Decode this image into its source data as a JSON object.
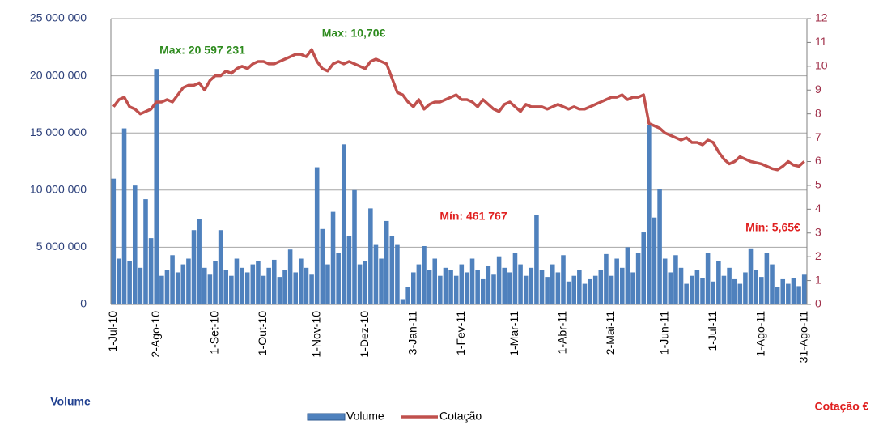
{
  "chart_data": {
    "type": "bar-line",
    "annotations": [
      "Max: 20 597 231",
      "Max: 10,70€",
      "Mín: 461 767",
      "Mín: 5,65€"
    ],
    "y_label": "Volume",
    "y2_label": "Cotação €",
    "categories": [
      "1-Jul-10",
      null,
      null,
      null,
      null,
      null,
      null,
      null,
      "2-Ago-10",
      null,
      null,
      null,
      null,
      null,
      null,
      null,
      null,
      null,
      null,
      "1-Set-10",
      null,
      null,
      null,
      null,
      null,
      null,
      null,
      null,
      "1-Out-10",
      null,
      null,
      null,
      null,
      null,
      null,
      null,
      null,
      null,
      "1-Nov-10",
      null,
      null,
      null,
      null,
      null,
      null,
      null,
      null,
      "1-Dez-10",
      null,
      null,
      null,
      null,
      null,
      null,
      null,
      null,
      "3-Jan-11",
      null,
      null,
      null,
      null,
      null,
      null,
      null,
      null,
      "1-Fev-11",
      null,
      null,
      null,
      null,
      null,
      null,
      null,
      null,
      null,
      "1-Mar-11",
      null,
      null,
      null,
      null,
      null,
      null,
      null,
      null,
      "1-Abr-11",
      null,
      null,
      null,
      null,
      null,
      null,
      null,
      null,
      "2-Mai-11",
      null,
      null,
      null,
      null,
      null,
      null,
      null,
      null,
      null,
      "1-Jun-11",
      null,
      null,
      null,
      null,
      null,
      null,
      null,
      null,
      "1-Jul-11",
      null,
      null,
      null,
      null,
      null,
      null,
      null,
      null,
      "1-Ago-11",
      null,
      null,
      null,
      null,
      null,
      null,
      null,
      "31-Ago-11"
    ],
    "series": [
      {
        "name": "Volume",
        "type": "bar",
        "color": "#4f81bd",
        "values": [
          11000000.0,
          4000000.0,
          15400000.0,
          3800000.0,
          10400000.0,
          3200000.0,
          9200000.0,
          5800000.0,
          20597231,
          2500000.0,
          3000000.0,
          4300000.0,
          2800000.0,
          3500000.0,
          4000000.0,
          6500000.0,
          7500000.0,
          3200000.0,
          2600000.0,
          3800000.0,
          6500000.0,
          3000000.0,
          2500000.0,
          4000000.0,
          3200000.0,
          2800000.0,
          3500000.0,
          3800000.0,
          2500000.0,
          3200000.0,
          3900000.0,
          2400000.0,
          3000000.0,
          4800000.0,
          2800000.0,
          4000000.0,
          3200000.0,
          2600000.0,
          12000000.0,
          6600000.0,
          3500000.0,
          8100000.0,
          4500000.0,
          14000000.0,
          6000000.0,
          10000000.0,
          3500000.0,
          3800000.0,
          8400000.0,
          5200000.0,
          4000000.0,
          7300000.0,
          6000000.0,
          5200000.0,
          461767,
          1500000.0,
          2800000.0,
          3500000.0,
          5100000.0,
          3000000.0,
          4000000.0,
          2500000.0,
          3200000.0,
          3000000.0,
          2500000.0,
          3500000.0,
          2800000.0,
          4000000.0,
          3000000.0,
          2200000.0,
          3400000.0,
          2600000.0,
          4200000.0,
          3200000.0,
          2800000.0,
          4500000.0,
          3500000.0,
          2500000.0,
          3200000.0,
          7800000.0,
          3000000.0,
          2400000.0,
          3500000.0,
          2800000.0,
          4300000.0,
          2000000.0,
          2500000.0,
          3000000.0,
          1800000.0,
          2200000.0,
          2500000.0,
          3000000.0,
          4400000.0,
          2500000.0,
          4000000.0,
          3200000.0,
          5000000.0,
          2800000.0,
          4500000.0,
          6300000.0,
          15700000.0,
          7600000.0,
          10100000.0,
          4000000.0,
          2800000.0,
          4300000.0,
          3200000.0,
          1800000.0,
          2500000.0,
          3000000.0,
          2300000.0,
          4500000.0,
          2000000.0,
          3800000.0,
          2500000.0,
          3200000.0,
          2200000.0,
          1800000.0,
          2800000.0,
          4900000.0,
          3000000.0,
          2400000.0,
          4500000.0,
          3500000.0,
          1500000.0,
          2200000.0,
          1800000.0,
          2300000.0,
          1600000.0,
          2600000.0
        ]
      },
      {
        "name": "Cotação",
        "type": "line",
        "axis": "y2",
        "color": "#c0504d",
        "values": [
          8.3,
          8.6,
          8.7,
          8.3,
          8.2,
          8.0,
          8.1,
          8.2,
          8.5,
          8.5,
          8.6,
          8.5,
          8.8,
          9.1,
          9.2,
          9.2,
          9.3,
          9.0,
          9.4,
          9.6,
          9.6,
          9.8,
          9.7,
          9.9,
          10.0,
          9.9,
          10.1,
          10.2,
          10.2,
          10.1,
          10.1,
          10.2,
          10.3,
          10.4,
          10.5,
          10.5,
          10.4,
          10.7,
          10.2,
          9.9,
          9.8,
          10.1,
          10.2,
          10.1,
          10.2,
          10.1,
          10.0,
          9.9,
          10.2,
          10.3,
          10.2,
          10.1,
          9.5,
          8.9,
          8.8,
          8.5,
          8.3,
          8.6,
          8.2,
          8.4,
          8.5,
          8.5,
          8.6,
          8.7,
          8.8,
          8.6,
          8.6,
          8.5,
          8.3,
          8.6,
          8.4,
          8.2,
          8.1,
          8.4,
          8.5,
          8.3,
          8.1,
          8.4,
          8.3,
          8.3,
          8.3,
          8.2,
          8.3,
          8.4,
          8.3,
          8.2,
          8.3,
          8.2,
          8.2,
          8.3,
          8.4,
          8.5,
          8.6,
          8.7,
          8.7,
          8.8,
          8.6,
          8.7,
          8.7,
          8.8,
          7.6,
          7.5,
          7.4,
          7.2,
          7.1,
          7.0,
          6.9,
          7.0,
          6.8,
          6.8,
          6.7,
          6.9,
          6.8,
          6.4,
          6.1,
          5.9,
          6.0,
          6.2,
          6.1,
          6.0,
          5.95,
          5.9,
          5.8,
          5.7,
          5.65,
          5.8,
          6.0,
          5.85,
          5.8,
          6.0
        ]
      }
    ],
    "ylim": [
      0,
      25000000
    ],
    "yticks": [
      0,
      {
        "value": 5000000,
        "label": "5 000 000"
      },
      {
        "value": 10000000,
        "label": "10 000 000"
      },
      {
        "value": 15000000,
        "label": "15 000 000"
      },
      {
        "value": 20000000,
        "label": "20 000 000"
      },
      {
        "value": 25000000,
        "label": "25 000 000"
      }
    ],
    "y2lim": [
      0,
      12
    ],
    "y2ticks": [
      0,
      1,
      2,
      3,
      4,
      5,
      6,
      7,
      8,
      9,
      10,
      11,
      12
    ],
    "grid": true,
    "legend": "bottom"
  }
}
